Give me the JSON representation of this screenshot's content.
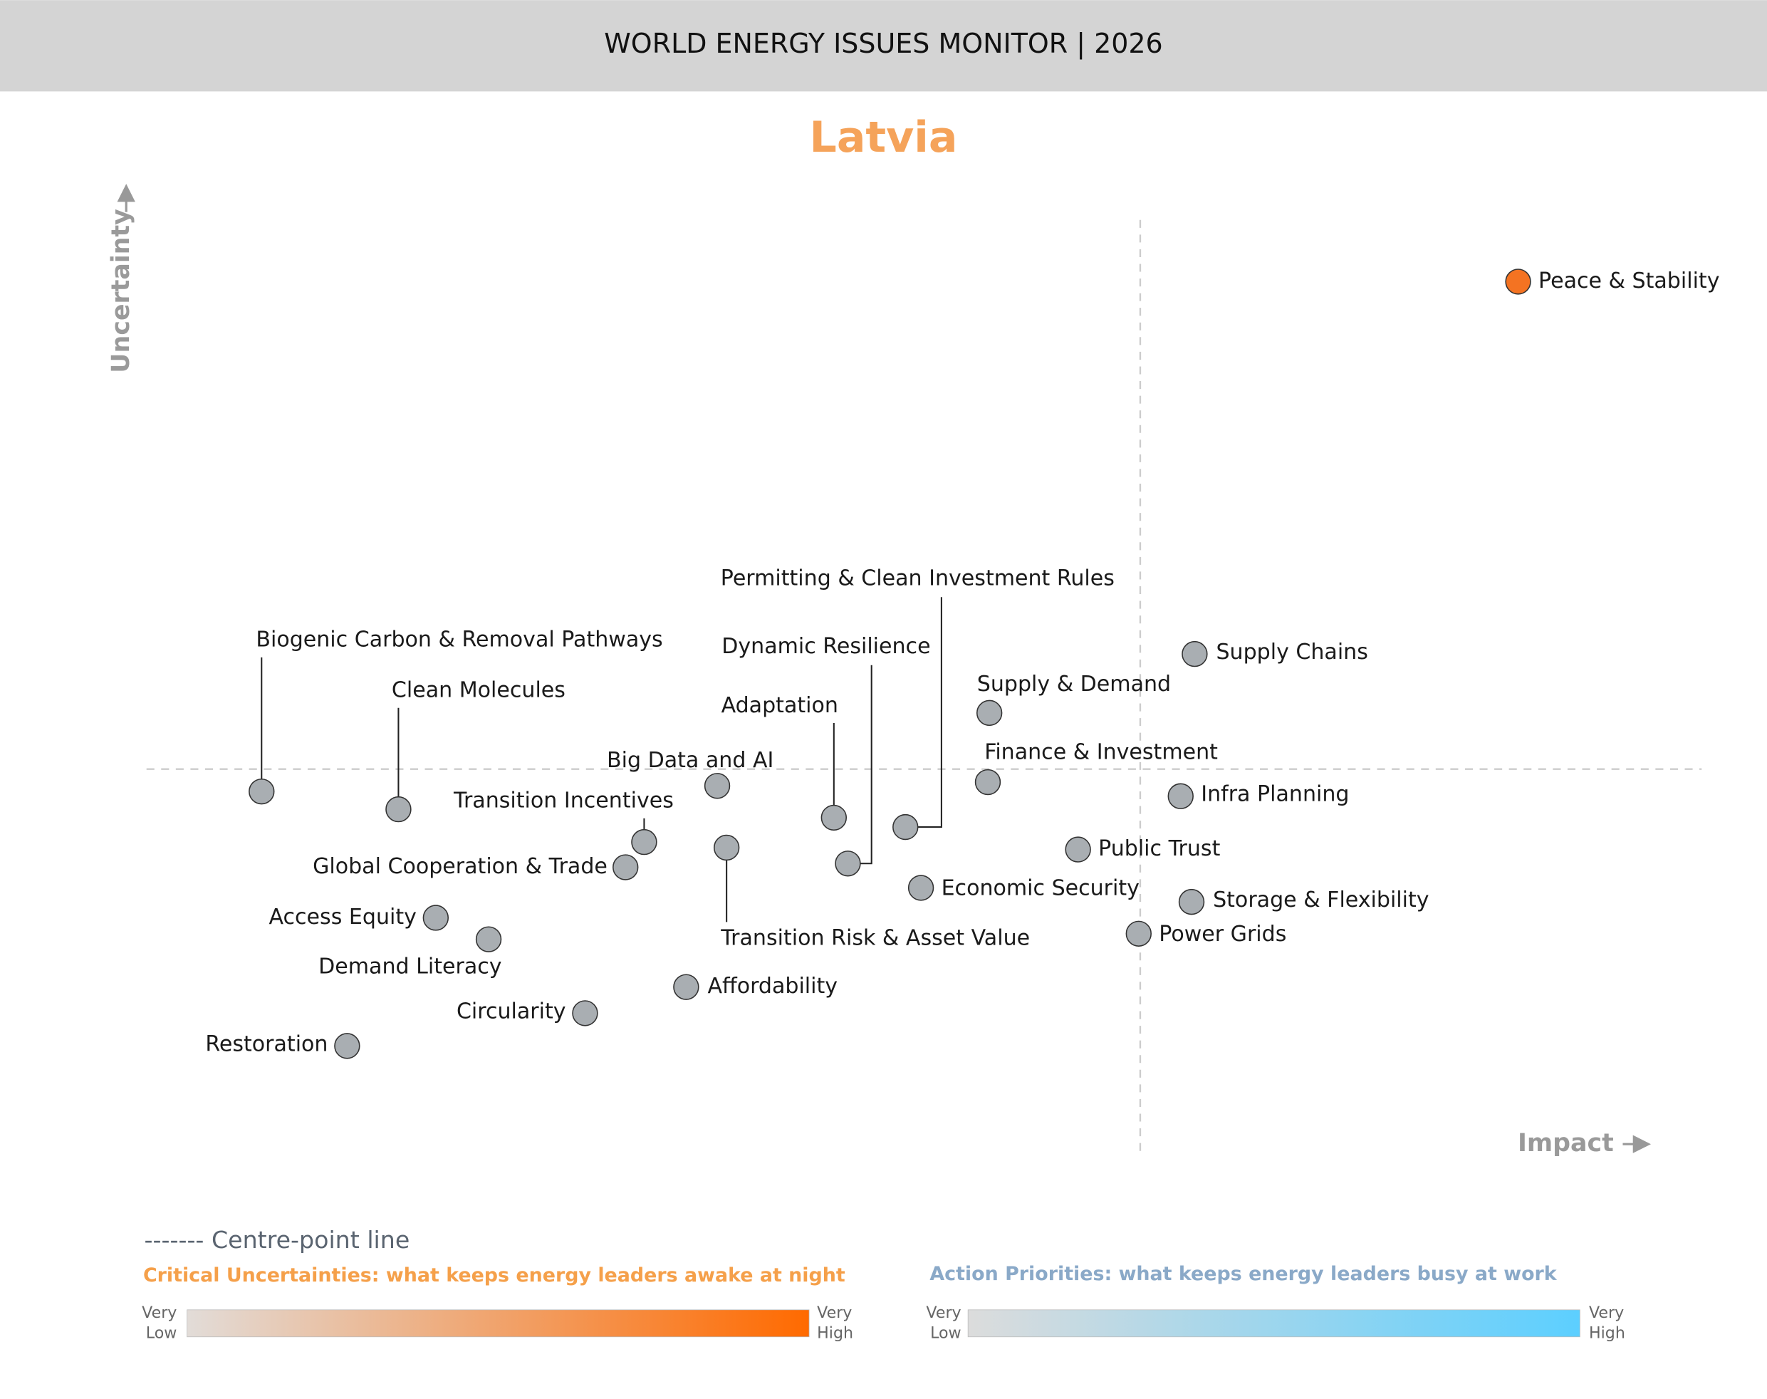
{
  "header": {
    "title": "WORLD ENERGY ISSUES MONITOR | 2026"
  },
  "chart_data": {
    "type": "scatter",
    "title": "Latvia",
    "x_label": "Impact",
    "y_label": "Uncertainty",
    "xlim": [
      0,
      10
    ],
    "ylim": [
      0,
      10
    ],
    "centre": {
      "x": 6.39,
      "y": 4.13
    },
    "labels": [
      "Peace & Stability",
      "Supply Chains",
      "Supply & Demand",
      "Finance & Investment",
      "Infra Planning",
      "Public Trust",
      "Storage & Flexibility",
      "Power Grids",
      "Economic Security",
      "Permitting & Clean Investment Rules",
      "Dynamic Resilience",
      "Adaptation",
      "Transition Risk & Asset Value",
      "Big Data and AI",
      "Affordability",
      "Transition Incentives",
      "Global Cooperation & Trade",
      "Circularity",
      "Demand Literacy",
      "Access Equity",
      "Restoration",
      "Clean Molecules",
      "Biogenic Carbon & Removal Pathways"
    ],
    "x": [
      8.82,
      6.74,
      5.42,
      5.41,
      6.65,
      5.99,
      6.72,
      6.38,
      4.98,
      4.88,
      4.51,
      4.42,
      3.73,
      3.67,
      3.47,
      3.2,
      3.08,
      2.82,
      2.2,
      1.86,
      1.29,
      1.62,
      0.74
    ],
    "values": [
      9.34,
      5.36,
      4.73,
      3.99,
      3.84,
      3.27,
      2.71,
      2.37,
      2.86,
      3.51,
      3.12,
      3.61,
      3.29,
      3.95,
      1.8,
      3.35,
      3.08,
      1.52,
      2.31,
      2.54,
      1.17,
      3.7,
      3.89
    ],
    "colors": [
      "#f47322",
      "#a9aeb2",
      "#a9aeb2",
      "#a9aeb2",
      "#a9aeb2",
      "#a9aeb2",
      "#a9aeb2",
      "#a9aeb2",
      "#a9aeb2",
      "#a9aeb2",
      "#a9aeb2",
      "#a9aeb2",
      "#a9aeb2",
      "#a9aeb2",
      "#a9aeb2",
      "#a9aeb2",
      "#a9aeb2",
      "#a9aeb2",
      "#a9aeb2",
      "#a9aeb2",
      "#a9aeb2",
      "#a9aeb2",
      "#a9aeb2"
    ]
  },
  "legend": {
    "centre_line": "------- Centre-point line",
    "uncertainties": {
      "title": "Critical Uncertainties: what keeps energy leaders awake at night",
      "low": [
        "Very",
        "Low"
      ],
      "high": [
        "Very",
        "High"
      ],
      "colors": [
        "#e2dcd8",
        "#ff6a00"
      ]
    },
    "priorities": {
      "title": "Action Priorities: what keeps energy leaders busy at work",
      "low": [
        "Very",
        "Low"
      ],
      "high": [
        "Very",
        "High"
      ],
      "colors": [
        "#dcdcdc",
        "#5ccfff"
      ]
    }
  }
}
